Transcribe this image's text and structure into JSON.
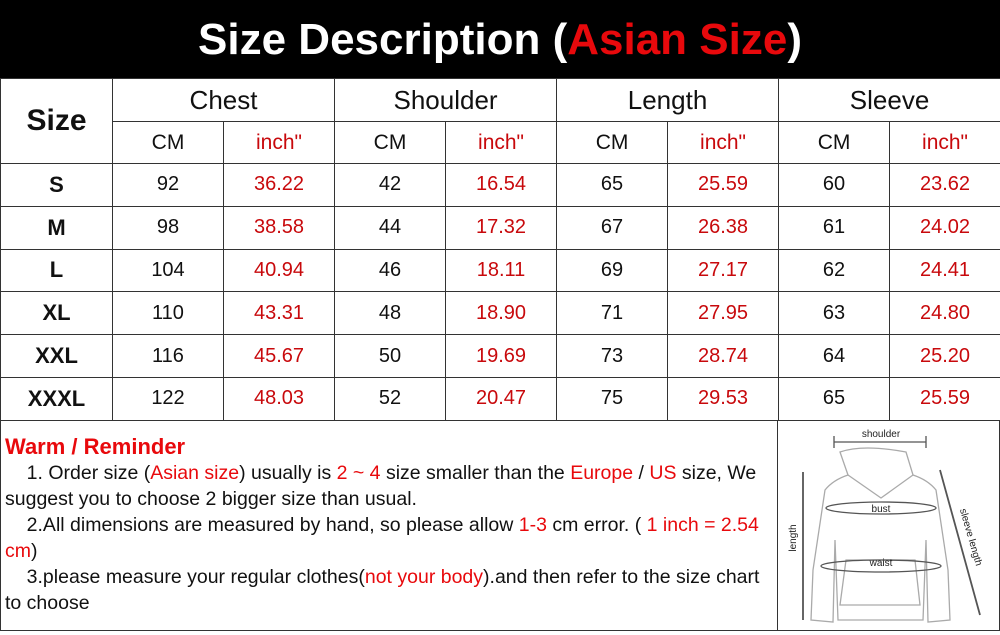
{
  "title": {
    "prefix": "Size Description (",
    "highlight": "Asian Size",
    "suffix": ")"
  },
  "table": {
    "size_header": "Size",
    "groups": [
      "Chest",
      "Shoulder",
      "Length",
      "Sleeve"
    ],
    "units": [
      "CM",
      "inch\"",
      "CM",
      "inch\"",
      "CM",
      "inch\"",
      "CM",
      "inch\""
    ],
    "rows": [
      {
        "size": "S",
        "values": [
          "92",
          "36.22",
          "42",
          "16.54",
          "65",
          "25.59",
          "60",
          "23.62"
        ]
      },
      {
        "size": "M",
        "values": [
          "98",
          "38.58",
          "44",
          "17.32",
          "67",
          "26.38",
          "61",
          "24.02"
        ]
      },
      {
        "size": "L",
        "values": [
          "104",
          "40.94",
          "46",
          "18.11",
          "69",
          "27.17",
          "62",
          "24.41"
        ]
      },
      {
        "size": "XL",
        "values": [
          "110",
          "43.31",
          "48",
          "18.90",
          "71",
          "27.95",
          "63",
          "24.80"
        ]
      },
      {
        "size": "XXL",
        "values": [
          "116",
          "45.67",
          "50",
          "19.69",
          "73",
          "28.74",
          "64",
          "25.20"
        ]
      },
      {
        "size": "XXXL",
        "values": [
          "122",
          "48.03",
          "52",
          "20.47",
          "75",
          "29.53",
          "65",
          "25.59"
        ]
      }
    ]
  },
  "reminder": {
    "heading": "Warm / Reminder",
    "paragraphs": [
      [
        {
          "t": "    1.  Order size (",
          "red": false
        },
        {
          "t": "Asian size",
          "red": true
        },
        {
          "t": ") usually is ",
          "red": false
        },
        {
          "t": "2 ~ 4",
          "red": true
        },
        {
          "t": " size smaller than the ",
          "red": false
        },
        {
          "t": "Europe",
          "red": true
        },
        {
          "t": " / ",
          "red": false
        },
        {
          "t": "US",
          "red": true
        },
        {
          "t": " size, We suggest you to choose 2 bigger size than usual.",
          "red": false
        }
      ],
      [
        {
          "t": "    2.All dimensions are measured by hand, so please allow ",
          "red": false
        },
        {
          "t": "1-3",
          "red": true
        },
        {
          "t": " cm error. ( ",
          "red": false
        },
        {
          "t": "1 inch = 2.54 cm",
          "red": true
        },
        {
          "t": ")",
          "red": false
        }
      ],
      [
        {
          "t": "    3.please measure your regular clothes(",
          "red": false
        },
        {
          "t": "not your body",
          "red": true
        },
        {
          "t": ").and then refer to the size chart to choose",
          "red": false
        }
      ]
    ]
  },
  "diagram": {
    "shoulder": "shoulder",
    "bust": "bust",
    "waist": "waist",
    "length": "length",
    "sleeve": "sleeve length"
  },
  "colors": {
    "accent_red": "#e8090c",
    "title_bg": "#000000"
  }
}
